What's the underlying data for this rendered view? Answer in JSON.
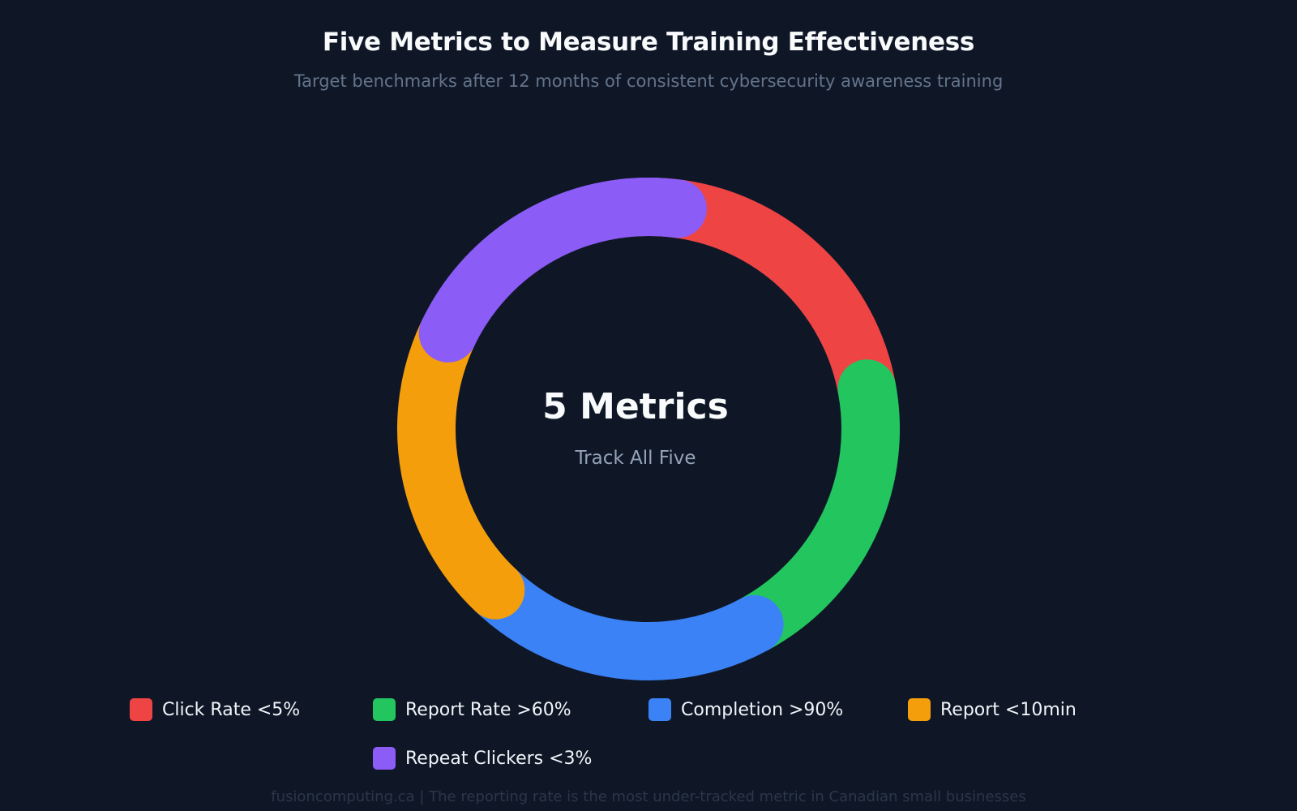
{
  "header": {
    "title": "Five Metrics to Measure Training Effectiveness",
    "subtitle": "Target benchmarks after 12 months of consistent cybersecurity awareness training"
  },
  "center": {
    "main": "5 Metrics",
    "sub": "Track All Five"
  },
  "legend": [
    {
      "label": "Click Rate <5%",
      "color": "#ef4444"
    },
    {
      "label": "Report Rate >60%",
      "color": "#22c55e"
    },
    {
      "label": "Completion >90%",
      "color": "#3b82f6"
    },
    {
      "label": "Report <10min",
      "color": "#f59e0b"
    },
    {
      "label": "Repeat Clickers <3%",
      "color": "#8b5cf6"
    }
  ],
  "footer": "fusioncomputing.ca | The reporting rate is the most under-tracked metric in Canadian small businesses",
  "chart_data": {
    "type": "pie",
    "variant": "doughnut",
    "title": "Five Metrics to Measure Training Effectiveness",
    "subtitle": "Target benchmarks after 12 months of consistent cybersecurity awareness training",
    "categories": [
      "Click Rate <5%",
      "Report Rate >60%",
      "Completion >90%",
      "Report <10min",
      "Repeat Clickers <3%"
    ],
    "values": [
      20,
      20,
      20,
      20,
      20
    ],
    "colors": [
      "#ef4444",
      "#22c55e",
      "#3b82f6",
      "#f59e0b",
      "#8b5cf6"
    ],
    "center_text": [
      "5 Metrics",
      "Track All Five"
    ],
    "legend_position": "bottom",
    "annotations": [
      "fusioncomputing.ca | The reporting rate is the most under-tracked metric in Canadian small businesses"
    ]
  },
  "colors": {
    "background": "#0f1727",
    "title": "#f8fafc",
    "subtitle": "#64748b",
    "center_sub": "#94a3b8",
    "footer": "#2b3648"
  }
}
